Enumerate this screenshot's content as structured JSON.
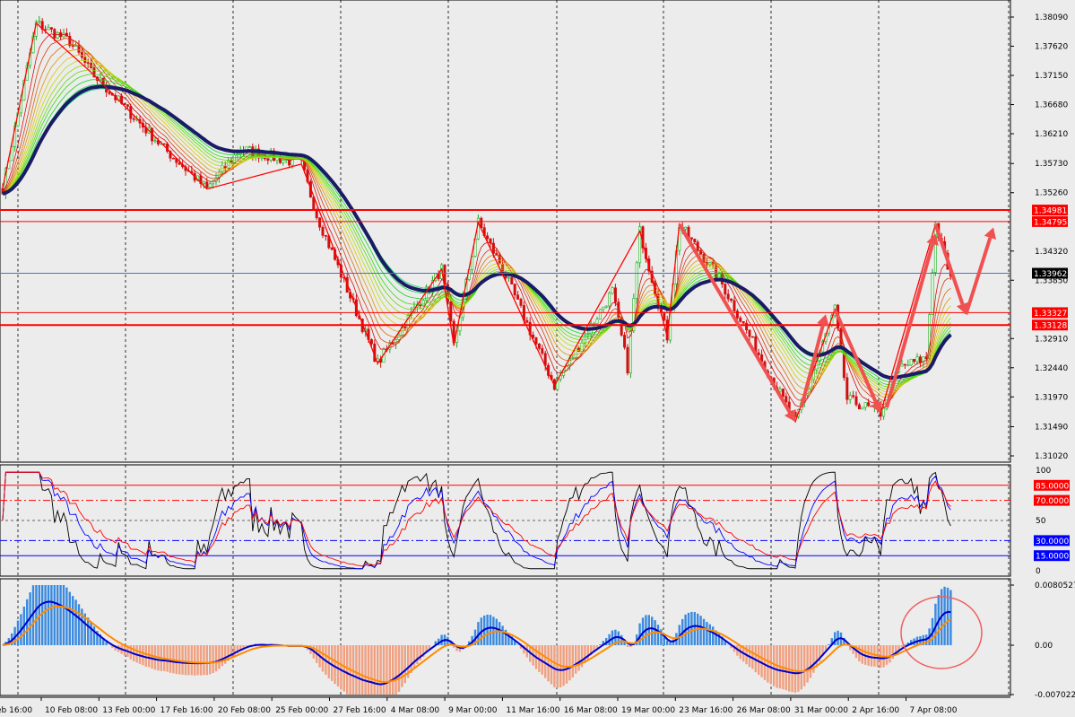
{
  "chart_data": [
    {
      "type": "candlestick",
      "pane": "price",
      "ylim": [
        1.3102,
        1.3809
      ],
      "y_ticks": [
        "1.38090",
        "1.37620",
        "1.37150",
        "1.36680",
        "1.36210",
        "1.35730",
        "1.35260",
        "1.34320",
        "1.33850",
        "1.32910",
        "1.32440",
        "1.31970",
        "1.31490",
        "1.31020"
      ],
      "levels": [
        {
          "value": 1.34981,
          "label": "1.34981",
          "color": "#ff0000",
          "style": "thick"
        },
        {
          "value": 1.34795,
          "label": "1.34795",
          "color": "#ff0000",
          "style": "thin"
        },
        {
          "value": 1.33962,
          "label": "1.33962",
          "color": "#5070c0",
          "style": "current"
        },
        {
          "value": 1.33327,
          "label": "1.33327",
          "color": "#ff0000",
          "style": "thin"
        },
        {
          "value": 1.33128,
          "label": "1.33128",
          "color": "#ff0000",
          "style": "thick"
        }
      ],
      "price_path": [
        [
          0,
          1.3533
        ],
        [
          11,
          1.3799
        ],
        [
          22,
          1.377
        ],
        [
          29,
          1.372
        ],
        [
          53,
          1.3597
        ],
        [
          67,
          1.3532
        ],
        [
          78,
          1.3597
        ],
        [
          98,
          1.3572
        ],
        [
          103,
          1.349
        ],
        [
          123,
          1.3251
        ],
        [
          144,
          1.3403
        ],
        [
          148,
          1.328
        ],
        [
          156,
          1.3478
        ],
        [
          164,
          1.3403
        ],
        [
          181,
          1.3215
        ],
        [
          200,
          1.3367
        ],
        [
          205,
          1.3244
        ],
        [
          209,
          1.3464
        ],
        [
          218,
          1.3294
        ],
        [
          222,
          1.3475
        ],
        [
          235,
          1.3388
        ],
        [
          252,
          1.3229
        ],
        [
          260,
          1.3157
        ],
        [
          273,
          1.3338
        ],
        [
          277,
          1.3193
        ],
        [
          288,
          1.3171
        ],
        [
          294,
          1.3244
        ],
        [
          303,
          1.326
        ],
        [
          306,
          1.3475
        ],
        [
          311,
          1.3388
        ]
      ],
      "zigzag": [
        [
          0,
          1.3533
        ],
        [
          11,
          1.3799
        ],
        [
          29,
          1.372
        ],
        [
          67,
          1.3532
        ],
        [
          98,
          1.3572
        ],
        [
          123,
          1.3251
        ],
        [
          144,
          1.3403
        ],
        [
          148,
          1.328
        ],
        [
          156,
          1.3478
        ],
        [
          181,
          1.3215
        ],
        [
          209,
          1.3464
        ],
        [
          218,
          1.3294
        ],
        [
          222,
          1.3475
        ],
        [
          260,
          1.3157
        ],
        [
          273,
          1.3338
        ],
        [
          288,
          1.3171
        ],
        [
          306,
          1.3475
        ]
      ],
      "arrows": [
        [
          [
            222,
            1.3475
          ],
          [
            260,
            1.3157
          ]
        ],
        [
          [
            262,
            1.318
          ],
          [
            270,
            1.333
          ]
        ],
        [
          [
            273,
            1.3338
          ],
          [
            288,
            1.3171
          ]
        ],
        [
          [
            290,
            1.318
          ],
          [
            306,
            1.346
          ]
        ],
        [
          [
            306,
            1.3475
          ],
          [
            316,
            1.333
          ]
        ],
        [
          [
            316,
            1.333
          ],
          [
            325,
            1.347
          ]
        ]
      ],
      "colors": {
        "up": "#22aa22",
        "down": "#d01010",
        "trend_ma": "#1a1a66"
      }
    },
    {
      "type": "line",
      "pane": "oscillator",
      "ylim": [
        0,
        100
      ],
      "y_ticks": [
        "100",
        "50",
        "0"
      ],
      "levels": [
        {
          "value": 85,
          "label": "85.0000",
          "color": "#ff0000",
          "style": "solid"
        },
        {
          "value": 70,
          "label": "70.0000",
          "color": "#ff0000",
          "style": "dashdot"
        },
        {
          "value": 50,
          "label": "",
          "color": "#666666",
          "style": "dotted"
        },
        {
          "value": 30,
          "label": "30.0000",
          "color": "#0000ff",
          "style": "dashdot"
        },
        {
          "value": 15,
          "label": "15.0000",
          "color": "#0000ff",
          "style": "solid"
        }
      ],
      "series_colors": [
        "#000000",
        "#0000ff",
        "#ff0000"
      ]
    },
    {
      "type": "bar",
      "pane": "macd",
      "ylim": [
        -0.007022,
        0.0080527
      ],
      "y_ticks": [
        "0.0080527",
        "0.00",
        "-0.007022"
      ],
      "colors": {
        "positive": "#3a8ae0",
        "negative": "#f0a080",
        "main": "#0000cc",
        "signal": "#ff8c00",
        "highlight_circle": "#f06060"
      }
    }
  ],
  "time_axis": [
    "eb 16:00",
    "10 Feb 08:00",
    "13 Feb 00:00",
    "17 Feb 16:00",
    "20 Feb 08:00",
    "25 Feb 00:00",
    "27 Feb 16:00",
    "4 Mar 08:00",
    "9 Mar 00:00",
    "11 Mar 16:00",
    "16 Mar 08:00",
    "19 Mar 00:00",
    "23 Mar 16:00",
    "26 Mar 08:00",
    "31 Mar 00:00",
    "2 Apr 16:00",
    "7 Apr 08:00"
  ]
}
